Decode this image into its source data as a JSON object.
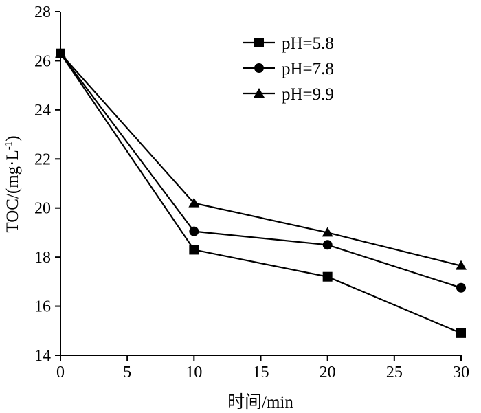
{
  "chart_data": {
    "type": "line",
    "xlabel": "时间/min",
    "ylabel_main": "TOC/(mg·L",
    "ylabel_sup": "-1",
    "ylabel_close": ")",
    "xlim": [
      0,
      30
    ],
    "ylim": [
      14,
      28
    ],
    "xticks": [
      0,
      5,
      10,
      15,
      20,
      25,
      30
    ],
    "yticks": [
      14,
      16,
      18,
      20,
      22,
      24,
      26,
      28
    ],
    "grid": false,
    "legend_position": "top-right",
    "x": [
      0,
      10,
      20,
      30
    ],
    "series": [
      {
        "name": "pH=5.8",
        "marker": "square",
        "values": [
          26.3,
          18.3,
          17.2,
          14.9
        ]
      },
      {
        "name": "pH=7.8",
        "marker": "circle",
        "values": [
          26.3,
          19.05,
          18.5,
          16.75
        ]
      },
      {
        "name": "pH=9.9",
        "marker": "triangle",
        "values": [
          26.3,
          20.2,
          19.0,
          17.65
        ]
      }
    ]
  }
}
